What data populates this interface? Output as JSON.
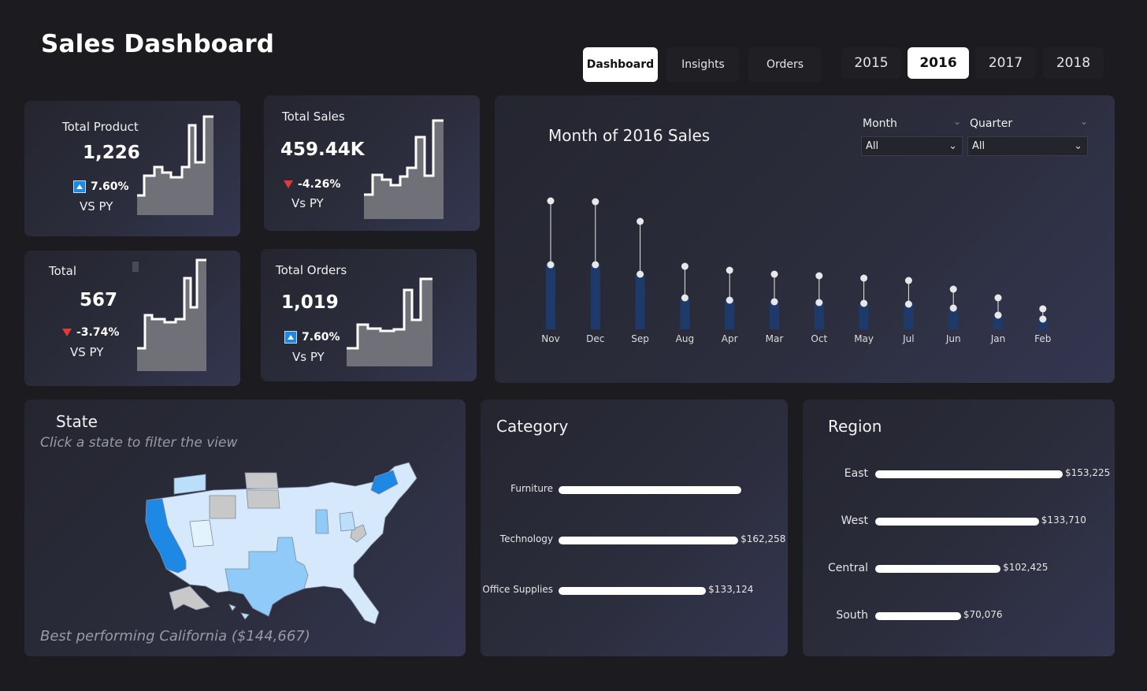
{
  "title": "Sales Dashboard",
  "nav": [
    {
      "label": "Dashboard",
      "active": true
    },
    {
      "label": "Insights",
      "active": false
    },
    {
      "label": "Orders",
      "active": false
    }
  ],
  "years": [
    {
      "label": "2015",
      "active": false
    },
    {
      "label": "2016",
      "active": true
    },
    {
      "label": "2017",
      "active": false
    },
    {
      "label": "2018",
      "active": false
    }
  ],
  "kpis": {
    "total_product": {
      "title": "Total Product",
      "value": "1,226",
      "delta": "7.60%",
      "direction": "up",
      "vs": "VS PY"
    },
    "total_sales": {
      "title": "Total Sales",
      "value": "459.44K",
      "delta": "-4.26%",
      "direction": "down",
      "vs": "Vs PY"
    },
    "total": {
      "title": "Total",
      "value": "567",
      "delta": "-3.74%",
      "direction": "down",
      "vs": "VS PY"
    },
    "total_orders": {
      "title": "Total Orders",
      "value": "1,019",
      "delta": "7.60%",
      "direction": "up",
      "vs": "Vs PY"
    }
  },
  "monthly": {
    "title": "Month of 2016 Sales",
    "filters": {
      "month": {
        "label": "Month",
        "value": "All"
      },
      "quarter": {
        "label": "Quarter",
        "value": "All"
      }
    }
  },
  "state": {
    "title": "State",
    "subtitle": "Click a state to filter the view",
    "note": "Best performing California ($144,667)"
  },
  "category": {
    "title": "Category",
    "items": [
      {
        "label": "Furniture",
        "value": 165000,
        "value_label": ""
      },
      {
        "label": "Technology",
        "value": 162258,
        "value_label": "$162,258"
      },
      {
        "label": "Office Supplies",
        "value": 133124,
        "value_label": "$133,124"
      }
    ]
  },
  "region": {
    "title": "Region",
    "items": [
      {
        "label": "East",
        "value": 153225,
        "value_label": "$153,225"
      },
      {
        "label": "West",
        "value": 133710,
        "value_label": "$133,710"
      },
      {
        "label": "Central",
        "value": 102425,
        "value_label": "$102,425"
      },
      {
        "label": "South",
        "value": 70076,
        "value_label": "$70,076"
      }
    ]
  },
  "chart_data": {
    "type": "bar",
    "categories": [
      "Nov",
      "Dec",
      "Sep",
      "Aug",
      "Apr",
      "Mar",
      "Oct",
      "May",
      "Jul",
      "Jun",
      "Jan",
      "Feb"
    ],
    "series": [
      {
        "values": [
          82,
          82,
          70,
          40,
          37,
          35,
          34,
          33,
          32,
          27,
          18,
          13
        ]
      },
      {
        "values": [
          163,
          162,
          137,
          80,
          75,
          70,
          68,
          65,
          62,
          51,
          40,
          26
        ]
      }
    ],
    "colors": {
      "bar": "#1e3a6b",
      "lollipop": "#e8e8e8"
    }
  }
}
